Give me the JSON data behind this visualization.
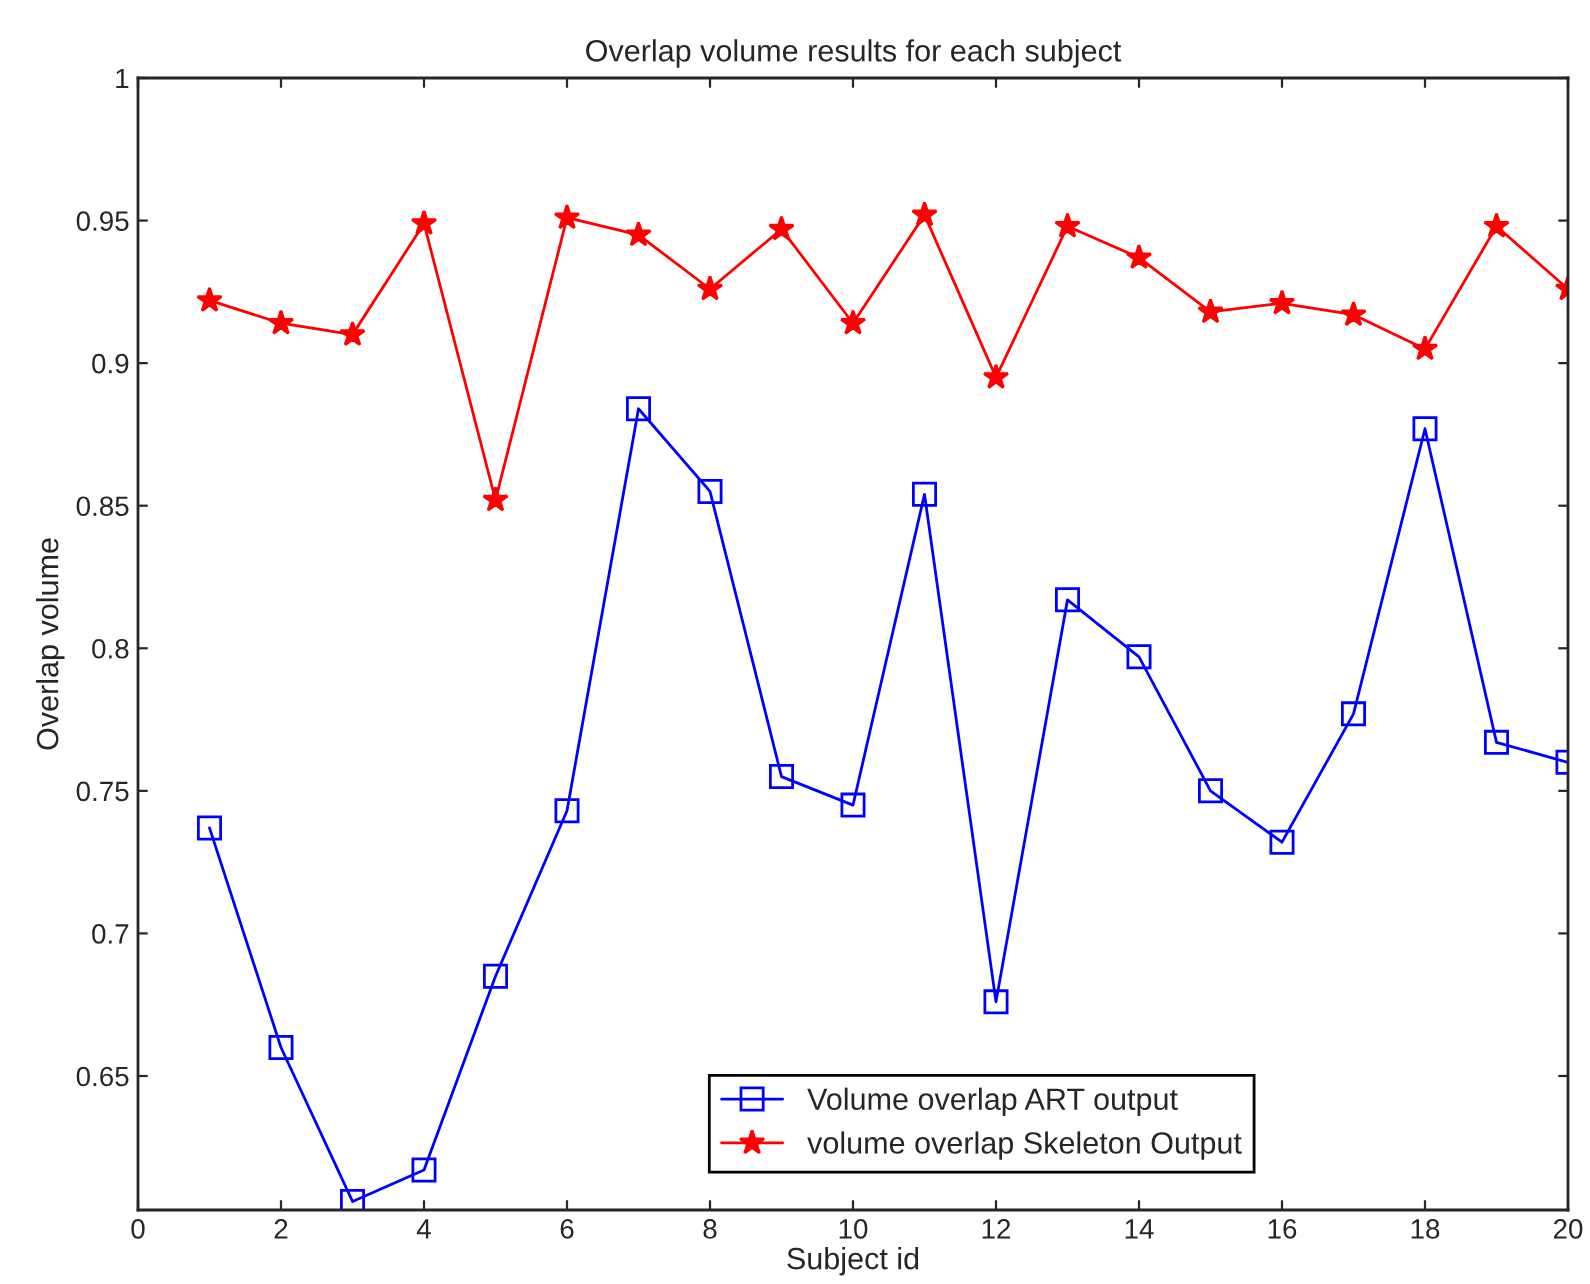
{
  "chart_data": {
    "type": "line",
    "title": "Overlap volume results for each subject",
    "xlabel": "Subject id",
    "ylabel": "Overlap volume",
    "x": [
      1,
      2,
      3,
      4,
      5,
      6,
      7,
      8,
      9,
      10,
      11,
      12,
      13,
      14,
      15,
      16,
      17,
      18,
      19,
      20
    ],
    "series": [
      {
        "name": "Volume overlap ART output",
        "color": "#0000ff",
        "marker": "square",
        "values": [
          0.737,
          0.66,
          0.606,
          0.617,
          0.685,
          0.743,
          0.884,
          0.855,
          0.755,
          0.745,
          0.854,
          0.676,
          0.817,
          0.797,
          0.75,
          0.732,
          0.777,
          0.877,
          0.767,
          0.76
        ]
      },
      {
        "name": "volume overlap Skeleton Output",
        "color": "#ff0000",
        "marker": "star",
        "values": [
          0.922,
          0.914,
          0.91,
          0.949,
          0.852,
          0.951,
          0.945,
          0.926,
          0.947,
          0.914,
          0.952,
          0.895,
          0.948,
          0.937,
          0.918,
          0.921,
          0.917,
          0.905,
          0.948,
          0.926
        ]
      }
    ],
    "xlim": [
      0,
      20
    ],
    "xticks": [
      0,
      2,
      4,
      6,
      8,
      10,
      12,
      14,
      16,
      18,
      20
    ],
    "ylim": [
      0.603,
      1
    ],
    "yticks": [
      0.65,
      0.7,
      0.75,
      0.8,
      0.85,
      0.9,
      0.95,
      1
    ],
    "grid": false,
    "legend": "bottom",
    "line_style": "solid"
  }
}
